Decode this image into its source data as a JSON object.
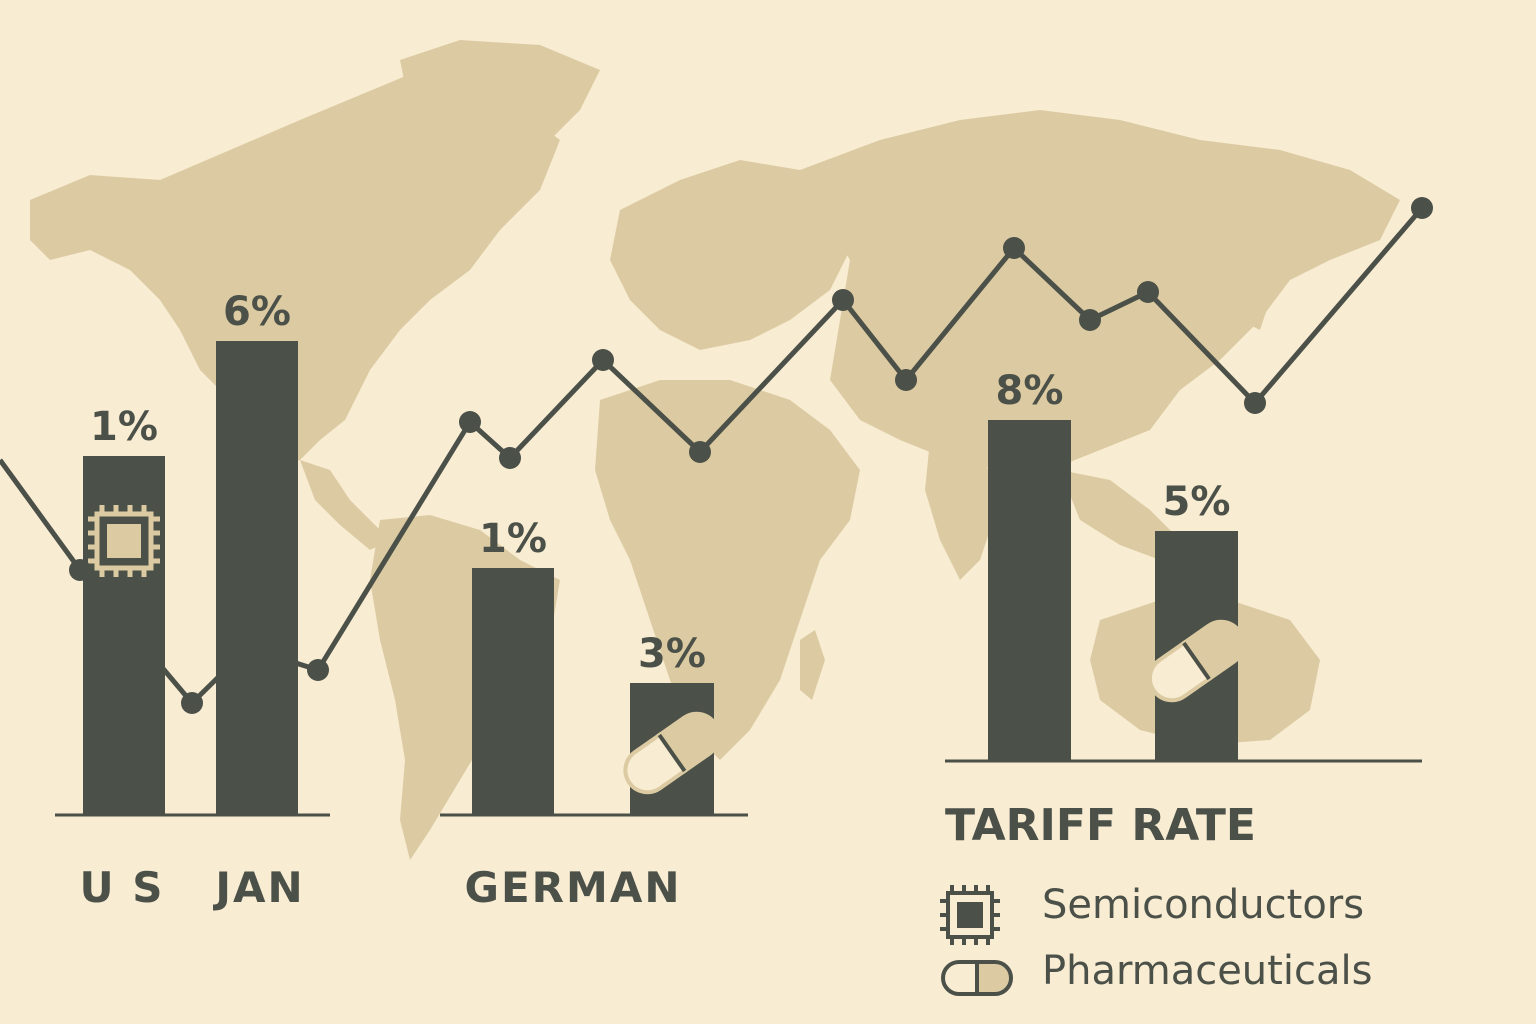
{
  "colors": {
    "background": "#f8ecd2",
    "map": "#dccba2",
    "bar": "#4b5048",
    "line": "#4b5048",
    "icon_fill": "#dccba2",
    "text": "#4b5048"
  },
  "chart_data": {
    "type": "bar",
    "title": "TARIFF RATE",
    "groups": [
      {
        "label": "U S",
        "bars": [
          {
            "value_label": "1%",
            "value": 1,
            "icon": "chip-icon"
          }
        ]
      },
      {
        "label": "JAN",
        "bars": [
          {
            "value_label": "6%",
            "value": 6,
            "icon": ""
          }
        ]
      },
      {
        "label": "GERMAN",
        "bars": [
          {
            "value_label": "1%",
            "value": 1,
            "icon": ""
          },
          {
            "value_label": "3%",
            "value": 3,
            "icon": "pill-icon"
          }
        ]
      },
      {
        "label": "",
        "bars": [
          {
            "value_label": "8%",
            "value": 8,
            "icon": ""
          },
          {
            "value_label": "5%",
            "value": 5,
            "icon": "pill-icon"
          }
        ]
      }
    ],
    "legend": [
      {
        "label": "Semiconductors",
        "icon": "chip-icon"
      },
      {
        "label": "Pharmaceuticals",
        "icon": "pill-icon"
      }
    ],
    "legend_position": "bottom-right",
    "trend_line": {
      "description_visible": false,
      "points": [
        [
          0,
          460
        ],
        [
          80,
          570
        ],
        [
          192,
          703
        ],
        [
          248,
          648
        ],
        [
          318,
          670
        ],
        [
          470,
          422
        ],
        [
          510,
          458
        ],
        [
          603,
          360
        ],
        [
          700,
          452
        ],
        [
          843,
          300
        ],
        [
          906,
          380
        ],
        [
          1014,
          248
        ],
        [
          1090,
          320
        ],
        [
          1148,
          292
        ],
        [
          1255,
          403
        ],
        [
          1422,
          208
        ]
      ]
    },
    "grid": false
  }
}
